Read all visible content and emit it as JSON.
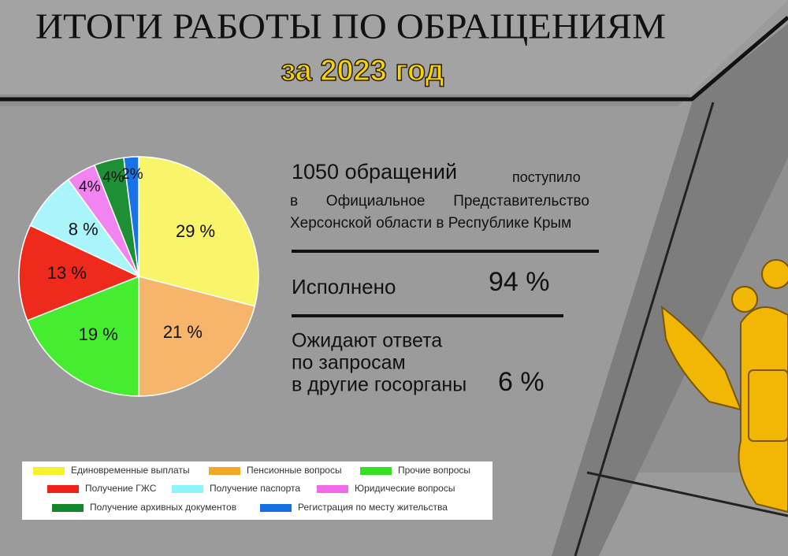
{
  "header": {
    "title": "ИТОГИ РАБОТЫ ПО ОБРАЩЕНИЯМ",
    "subtitle": "за 2023 год"
  },
  "stats": {
    "received_count": "1050 обращений",
    "received_word": "поступило",
    "received_text": "в Официальное Представительство Херсонской области в Республике Крым",
    "done_label": "Исполнено",
    "done_value": "94 %",
    "waiting_lines": [
      "Ожидают ответа",
      "по запросам",
      "в другие госорганы"
    ],
    "waiting_value": "6 %"
  },
  "chart_data": {
    "type": "pie",
    "categories": [
      "Единовременные выплаты",
      "Пенсионные вопросы",
      "Прочие вопросы",
      "Получение ГЖС",
      "Получение паспорта",
      "Юридические вопросы",
      "Получение архивных документов",
      "Регистрация по месту жительства"
    ],
    "values": [
      29,
      21,
      19,
      13,
      8,
      4,
      4,
      2
    ],
    "value_labels": [
      "29 %",
      "21 %",
      "19 %",
      "13 %",
      "8 %",
      "4%",
      "4%",
      "2%"
    ],
    "colors": [
      "#f8f56a",
      "#f7b46b",
      "#46ec2f",
      "#ee2a1d",
      "#a9f5fb",
      "#f184f0",
      "#1e8f34",
      "#1a73e6"
    ],
    "legend_colors": [
      "#f7f12c",
      "#f5a623",
      "#33e022",
      "#ef2015",
      "#8ff3fa",
      "#ef6bea",
      "#13882a",
      "#166fe3"
    ]
  }
}
